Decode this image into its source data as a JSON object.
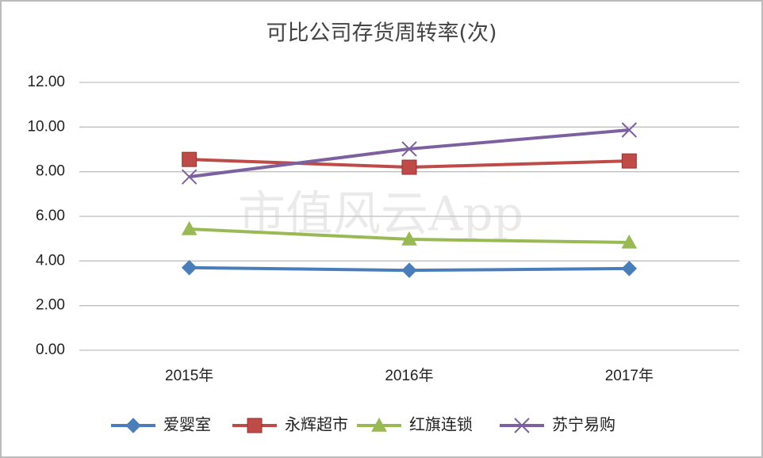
{
  "chart_data": {
    "type": "line",
    "title": "可比公司存货周转率(次)",
    "watermark": "市值风云App",
    "categories": [
      "2015年",
      "2016年",
      "2017年"
    ],
    "series": [
      {
        "name": "爱婴室",
        "color": "#4a7ebb",
        "marker": "diamond",
        "values": [
          3.7,
          3.58,
          3.66
        ]
      },
      {
        "name": "永辉超市",
        "color": "#be4b48",
        "marker": "square",
        "values": [
          8.55,
          8.2,
          8.48
        ]
      },
      {
        "name": "红旗连锁",
        "color": "#98b954",
        "marker": "triangle",
        "values": [
          5.43,
          4.97,
          4.83
        ]
      },
      {
        "name": "苏宁易购",
        "color": "#7d60a0",
        "marker": "x",
        "values": [
          7.77,
          9.02,
          9.87
        ]
      }
    ],
    "ylim": [
      0,
      12
    ],
    "yticks": [
      {
        "value": 0,
        "label": "0.00"
      },
      {
        "value": 2,
        "label": "2.00"
      },
      {
        "value": 4,
        "label": "4.00"
      },
      {
        "value": 6,
        "label": "6.00"
      },
      {
        "value": 8,
        "label": "8.00"
      },
      {
        "value": 10,
        "label": "10.00"
      },
      {
        "value": 12,
        "label": "12.00"
      }
    ],
    "grid": true,
    "legend": "bottom"
  }
}
